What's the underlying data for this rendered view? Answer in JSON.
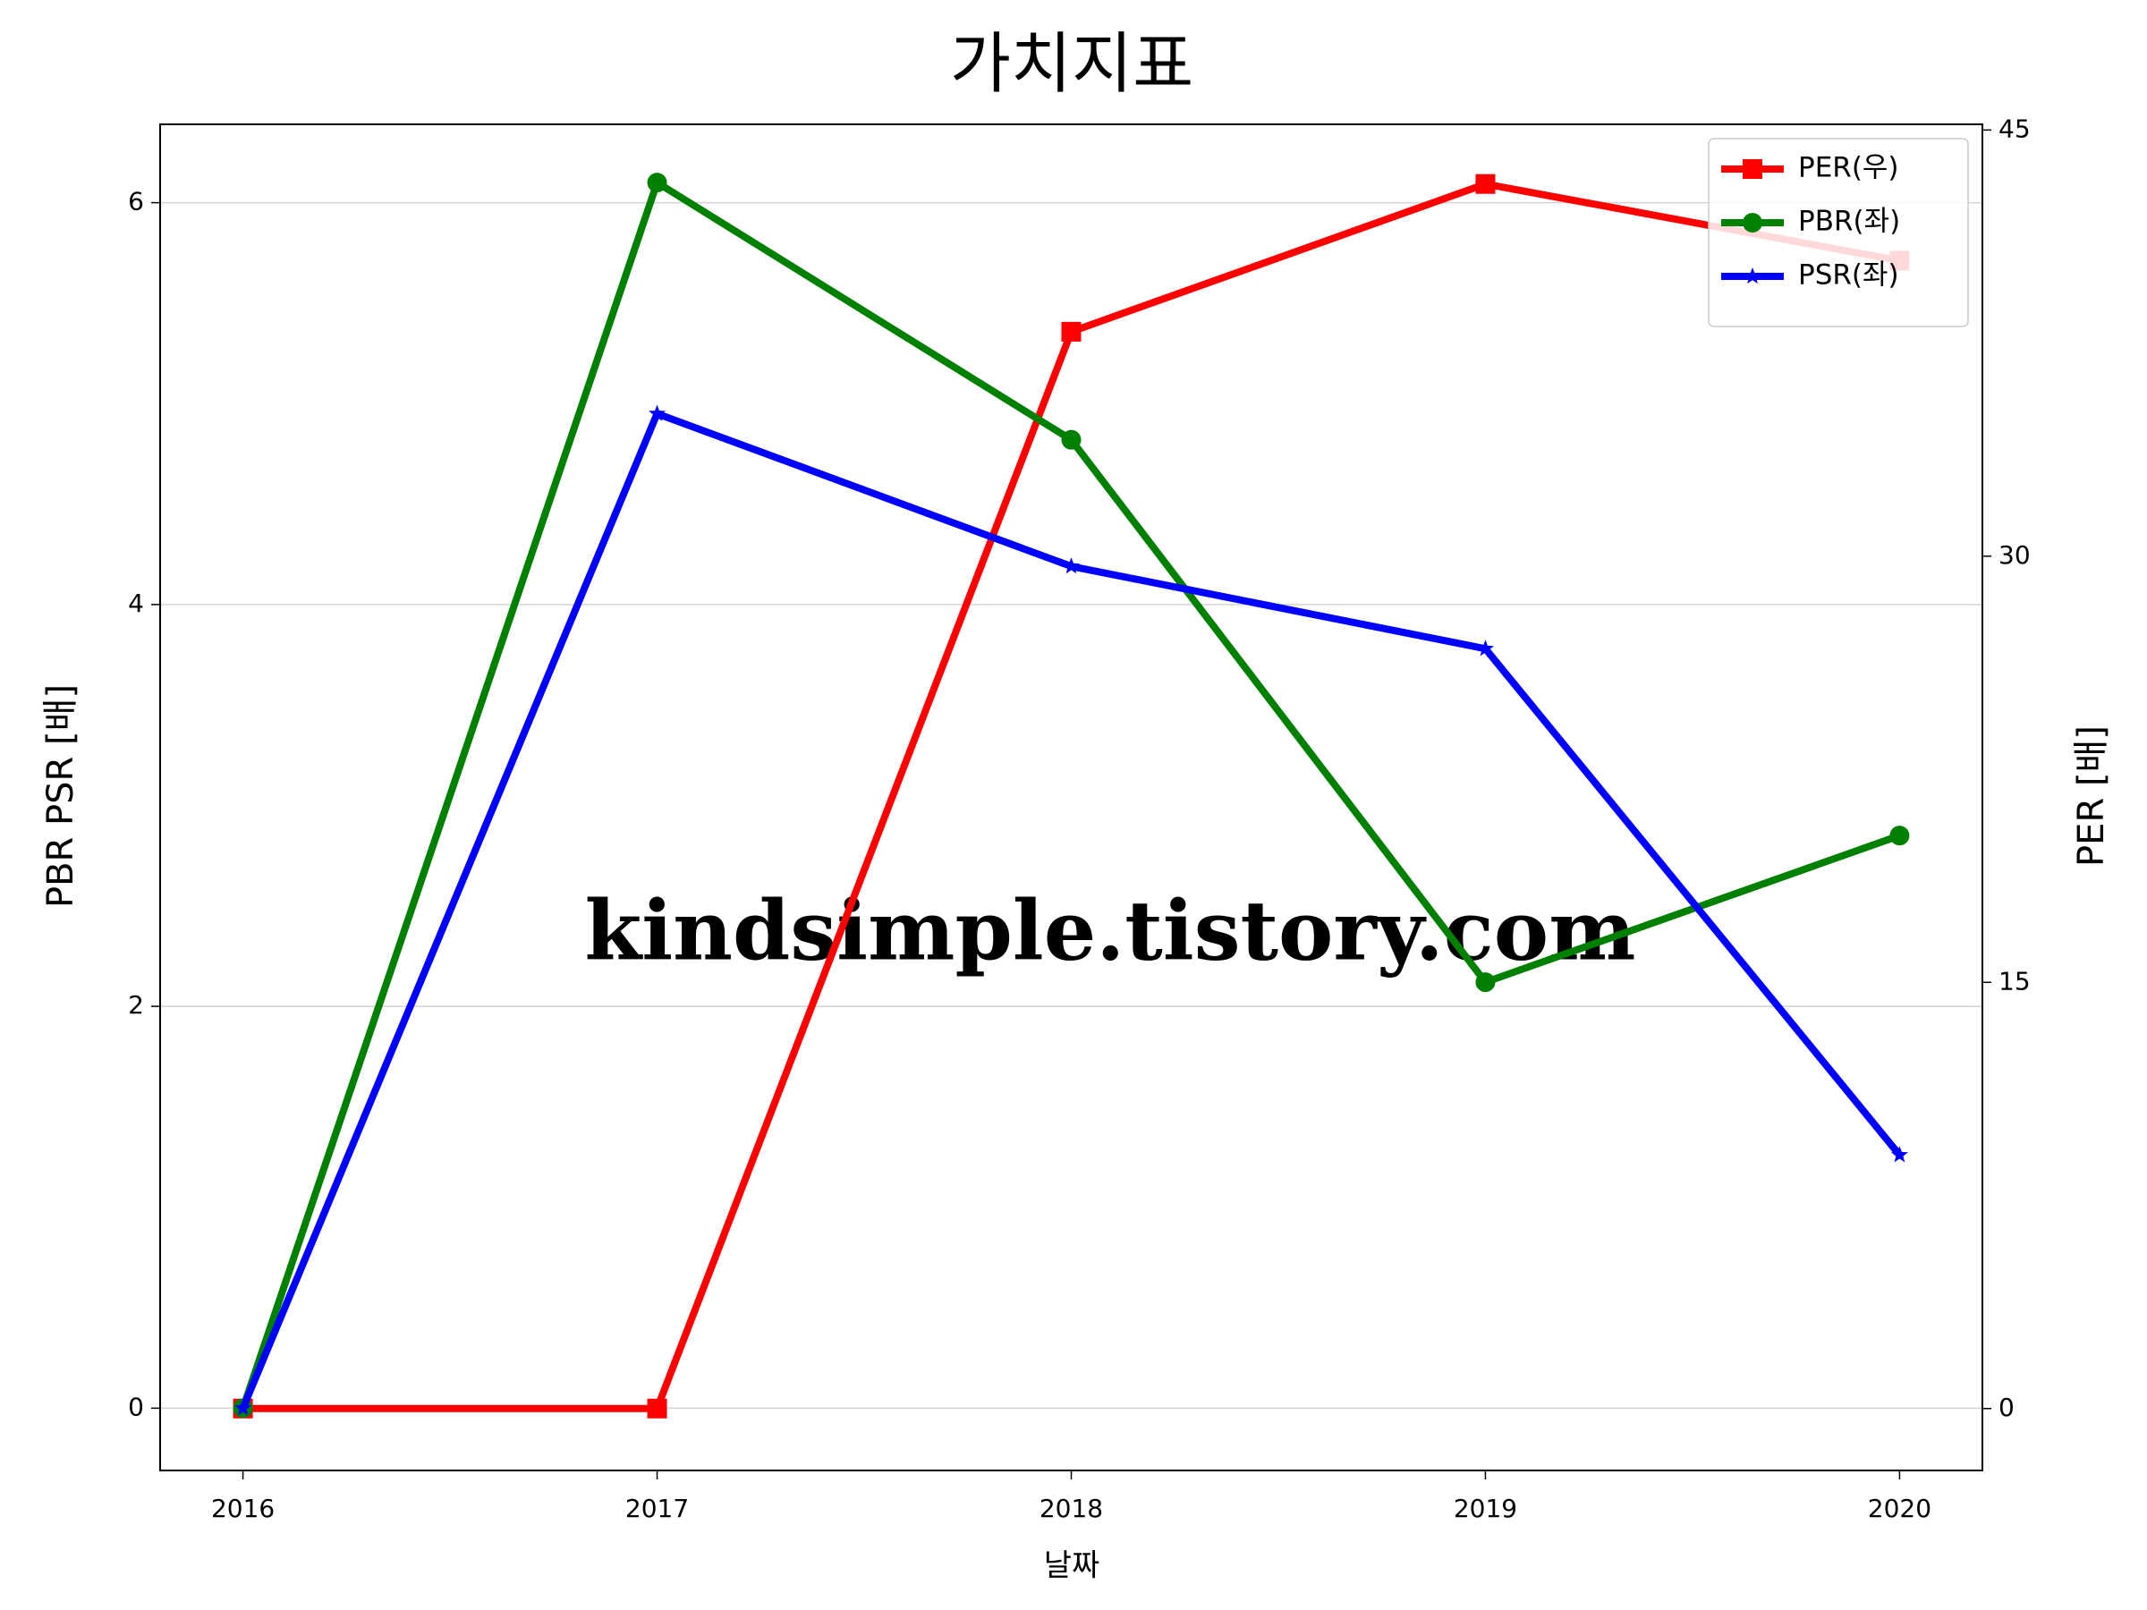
{
  "chart_data": {
    "type": "line",
    "title": "가치지표",
    "xlabel": "날짜",
    "ylabel": "PBR PSR [배]",
    "y2label": "PER [배]",
    "ylabel_color": "#008000",
    "y2label_color": "#ff0000",
    "annotation": "kindsimple.tistory.com",
    "x": [
      2016,
      2017,
      2018,
      2019,
      2020
    ],
    "xlim": [
      2015.8,
      2020.2
    ],
    "xticks": [
      2016,
      2017,
      2018,
      2019,
      2020
    ],
    "ylim": [
      -0.31,
      6.39
    ],
    "yticks": [
      0,
      2,
      4,
      6
    ],
    "y2lim": [
      -2.18,
      45.2
    ],
    "y2ticks": [
      0,
      15,
      30,
      45
    ],
    "grid": true,
    "legend": "upper right",
    "series": [
      {
        "name": "PER(우)",
        "color": "#ff0000",
        "marker": "square",
        "axis": "y2",
        "values": [
          0,
          0,
          37.9,
          43.1,
          40.4
        ]
      },
      {
        "name": "PBR(좌)",
        "color": "#008000",
        "marker": "circle",
        "values": [
          0,
          6.1,
          4.82,
          2.12,
          2.85
        ]
      },
      {
        "name": "PSR(좌)",
        "color": "#0000ff",
        "marker": "star",
        "values": [
          0,
          4.95,
          4.19,
          3.78,
          1.26
        ]
      }
    ]
  }
}
